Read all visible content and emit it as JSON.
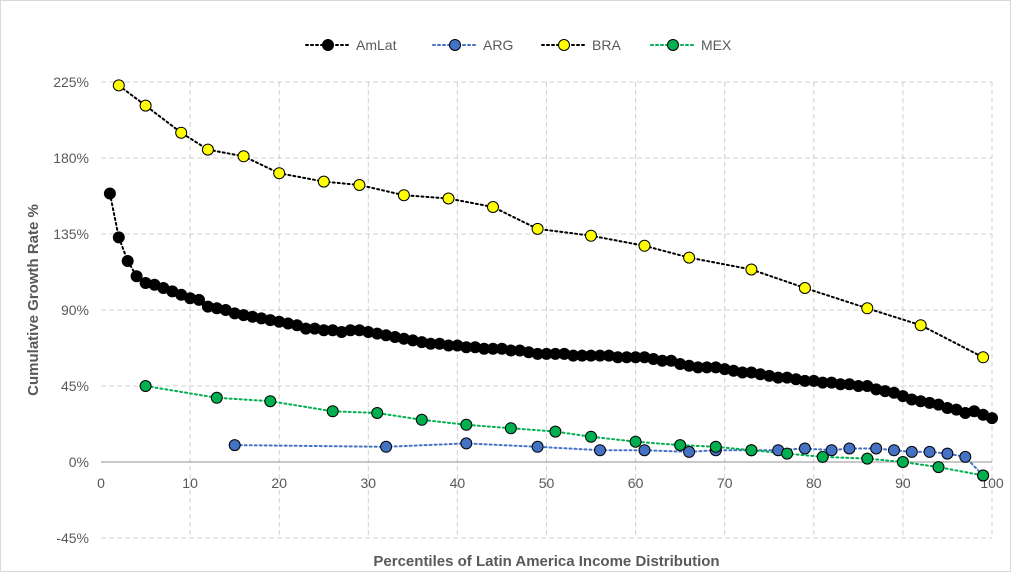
{
  "chart_data": {
    "type": "line",
    "xlabel": "Percentiles of Latin America Income Distribution",
    "ylabel": "Cumulative Growth Rate %",
    "xlim": [
      0,
      100
    ],
    "ylim": [
      -45,
      225
    ],
    "x_ticks": [
      0,
      10,
      20,
      30,
      40,
      50,
      60,
      70,
      80,
      90,
      100
    ],
    "y_ticks": [
      -45,
      0,
      45,
      90,
      135,
      180,
      225
    ],
    "x_tick_labels": [
      "0",
      "10",
      "20",
      "30",
      "40",
      "50",
      "60",
      "70",
      "80",
      "90",
      "100"
    ],
    "y_tick_labels": [
      "-45%",
      "0%",
      "45%",
      "90%",
      "135%",
      "180%",
      "225%"
    ],
    "grid": "dashed",
    "legend_position": "top-center",
    "series": [
      {
        "name": "AmLat",
        "color": "#000000",
        "line_color": "#000000",
        "line_style": "dotted",
        "points": [
          [
            1,
            159
          ],
          [
            2,
            133
          ],
          [
            3,
            119
          ],
          [
            4,
            110
          ],
          [
            5,
            106
          ],
          [
            6,
            105
          ],
          [
            7,
            103
          ],
          [
            8,
            101
          ],
          [
            9,
            99
          ],
          [
            10,
            97
          ],
          [
            11,
            96
          ],
          [
            12,
            92
          ],
          [
            13,
            91
          ],
          [
            14,
            90
          ],
          [
            15,
            88
          ],
          [
            16,
            87
          ],
          [
            17,
            86
          ],
          [
            18,
            85
          ],
          [
            19,
            84
          ],
          [
            20,
            83
          ],
          [
            21,
            82
          ],
          [
            22,
            81
          ],
          [
            23,
            79
          ],
          [
            24,
            79
          ],
          [
            25,
            78
          ],
          [
            26,
            78
          ],
          [
            27,
            77
          ],
          [
            28,
            78
          ],
          [
            29,
            78
          ],
          [
            30,
            77
          ],
          [
            31,
            76
          ],
          [
            32,
            75
          ],
          [
            33,
            74
          ],
          [
            34,
            73
          ],
          [
            35,
            72
          ],
          [
            36,
            71
          ],
          [
            37,
            70
          ],
          [
            38,
            70
          ],
          [
            39,
            69
          ],
          [
            40,
            69
          ],
          [
            41,
            68
          ],
          [
            42,
            68
          ],
          [
            43,
            67
          ],
          [
            44,
            67
          ],
          [
            45,
            67
          ],
          [
            46,
            66
          ],
          [
            47,
            66
          ],
          [
            48,
            65
          ],
          [
            49,
            64
          ],
          [
            50,
            64
          ],
          [
            51,
            64
          ],
          [
            52,
            64
          ],
          [
            53,
            63
          ],
          [
            54,
            63
          ],
          [
            55,
            63
          ],
          [
            56,
            63
          ],
          [
            57,
            63
          ],
          [
            58,
            62
          ],
          [
            59,
            62
          ],
          [
            60,
            62
          ],
          [
            61,
            62
          ],
          [
            62,
            61
          ],
          [
            63,
            60
          ],
          [
            64,
            60
          ],
          [
            65,
            58
          ],
          [
            66,
            57
          ],
          [
            67,
            56
          ],
          [
            68,
            56
          ],
          [
            69,
            56
          ],
          [
            70,
            55
          ],
          [
            71,
            54
          ],
          [
            72,
            53
          ],
          [
            73,
            53
          ],
          [
            74,
            52
          ],
          [
            75,
            51
          ],
          [
            76,
            50
          ],
          [
            77,
            50
          ],
          [
            78,
            49
          ],
          [
            79,
            48
          ],
          [
            80,
            48
          ],
          [
            81,
            47
          ],
          [
            82,
            47
          ],
          [
            83,
            46
          ],
          [
            84,
            46
          ],
          [
            85,
            45
          ],
          [
            86,
            45
          ],
          [
            87,
            43
          ],
          [
            88,
            42
          ],
          [
            89,
            41
          ],
          [
            90,
            39
          ],
          [
            91,
            37
          ],
          [
            92,
            36
          ],
          [
            93,
            35
          ],
          [
            94,
            34
          ],
          [
            95,
            32
          ],
          [
            96,
            31
          ],
          [
            97,
            29
          ],
          [
            98,
            30
          ],
          [
            99,
            28
          ],
          [
            100,
            26
          ]
        ]
      },
      {
        "name": "ARG",
        "color": "#4472c4",
        "line_color": "#4472c4",
        "line_style": "dotted",
        "points": [
          [
            15,
            10
          ],
          [
            32,
            9
          ],
          [
            41,
            11
          ],
          [
            49,
            9
          ],
          [
            56,
            7
          ],
          [
            61,
            7
          ],
          [
            66,
            6
          ],
          [
            69,
            7
          ],
          [
            73,
            7
          ],
          [
            76,
            7
          ],
          [
            79,
            8
          ],
          [
            82,
            7
          ],
          [
            84,
            8
          ],
          [
            87,
            8
          ],
          [
            89,
            7
          ],
          [
            91,
            6
          ],
          [
            93,
            6
          ],
          [
            95,
            5
          ],
          [
            97,
            3
          ],
          [
            99,
            -8
          ]
        ]
      },
      {
        "name": "BRA",
        "color": "#ffff00",
        "line_color": "#000000",
        "line_style": "dotted",
        "points": [
          [
            2,
            223
          ],
          [
            5,
            211
          ],
          [
            9,
            195
          ],
          [
            12,
            185
          ],
          [
            16,
            181
          ],
          [
            20,
            171
          ],
          [
            25,
            166
          ],
          [
            29,
            164
          ],
          [
            34,
            158
          ],
          [
            39,
            156
          ],
          [
            44,
            151
          ],
          [
            49,
            138
          ],
          [
            55,
            134
          ],
          [
            61,
            128
          ],
          [
            66,
            121
          ],
          [
            73,
            114
          ],
          [
            79,
            103
          ],
          [
            86,
            91
          ],
          [
            92,
            81
          ],
          [
            99,
            62
          ]
        ]
      },
      {
        "name": "MEX",
        "color": "#00b050",
        "line_color": "#00b050",
        "line_style": "dotted",
        "points": [
          [
            5,
            45
          ],
          [
            13,
            38
          ],
          [
            19,
            36
          ],
          [
            26,
            30
          ],
          [
            31,
            29
          ],
          [
            36,
            25
          ],
          [
            41,
            22
          ],
          [
            46,
            20
          ],
          [
            51,
            18
          ],
          [
            55,
            15
          ],
          [
            60,
            12
          ],
          [
            65,
            10
          ],
          [
            69,
            9
          ],
          [
            73,
            7
          ],
          [
            77,
            5
          ],
          [
            81,
            3
          ],
          [
            86,
            2
          ],
          [
            90,
            0
          ],
          [
            94,
            -3
          ],
          [
            99,
            -8
          ]
        ]
      }
    ]
  }
}
